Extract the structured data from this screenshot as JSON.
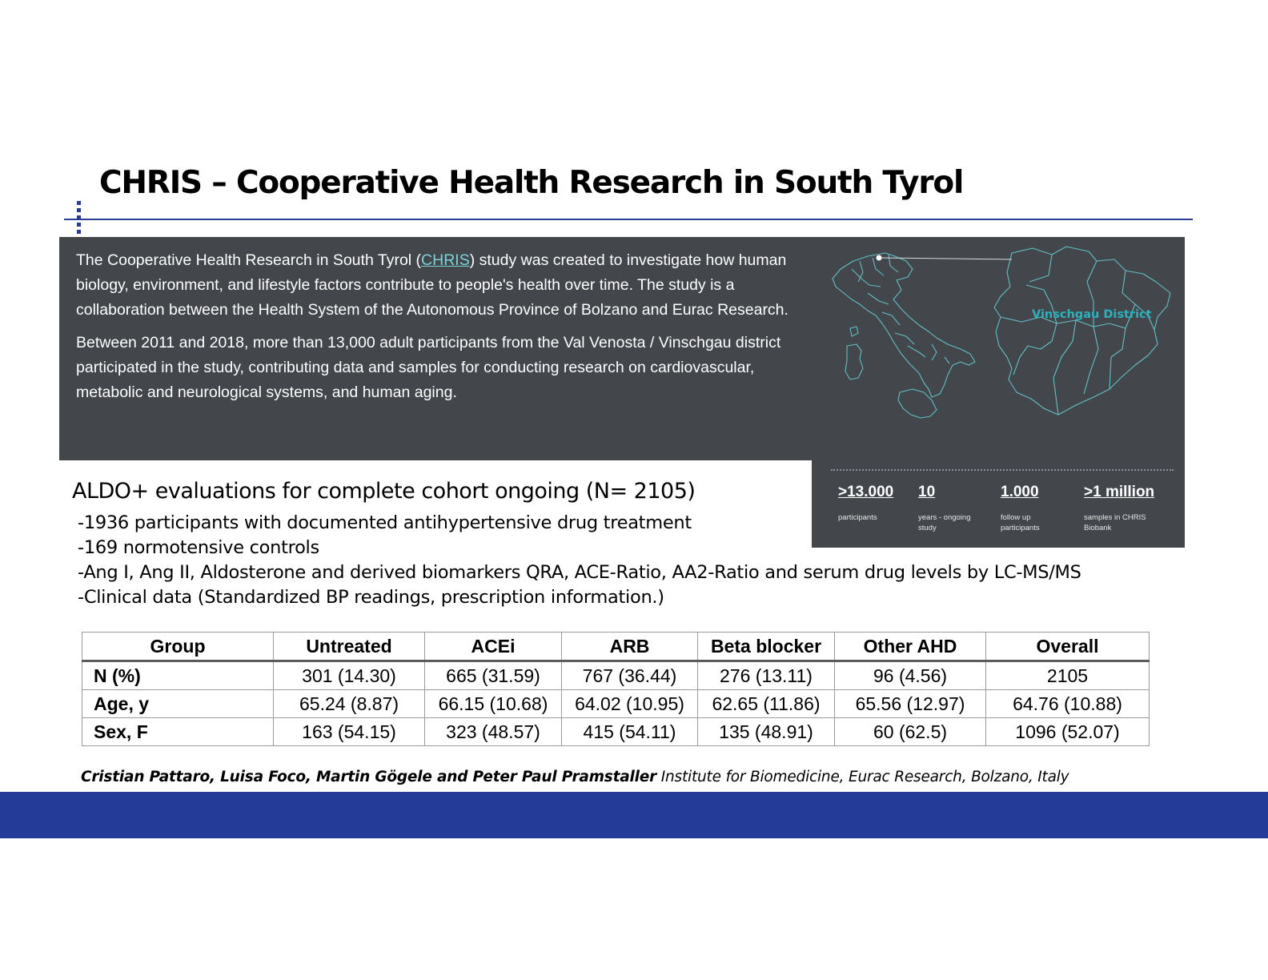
{
  "slide": {
    "title": "CHRIS – Cooperative Health Research in South Tyrol"
  },
  "info": {
    "p1_before": "The Cooperative Health Research in South Tyrol (",
    "p1_link": "CHRIS",
    "p1_after": ") study was created to investigate how human biology, environment, and lifestyle factors contribute to people's health over time. The study is a collaboration between the Health System of the Autonomous Province of Bolzano and Eurac Research.",
    "p2": "Between 2011 and 2018, more than 13,000 adult participants from the Val Venosta / Vinschgau district participated in the study, contributing data and samples  for conducting research on cardiovascular, metabolic and neurological systems, and human aging."
  },
  "map": {
    "district_label": "Vinschgau District",
    "accent_color": "#29b1bd",
    "stats": [
      {
        "value": ">13.000",
        "label": "participants"
      },
      {
        "value": "10",
        "label": "years - ongoing study"
      },
      {
        "value": "1.000",
        "label": "follow up participants"
      },
      {
        "value": ">1 million",
        "label": "samples in CHRIS Biobank"
      }
    ]
  },
  "aldo": {
    "heading": "ALDO+ evaluations for complete cohort ongoing (N= 2105)",
    "bullets": [
      "-1936 participants with documented antihypertensive drug treatment",
      "-169 normotensive controls",
      "-Ang I, Ang II, Aldosterone and derived biomarkers QRA, ACE-Ratio, AA2-Ratio and serum drug levels by LC-MS/MS",
      "-Clinical data (Standardized BP readings, prescription information.)"
    ]
  },
  "table": {
    "headers": [
      "Group",
      "Untreated",
      "ACEi",
      "ARB",
      "Beta blocker",
      "Other AHD",
      "Overall"
    ],
    "rows": [
      [
        "N (%)",
        "301 (14.30)",
        "665 (31.59)",
        "767 (36.44)",
        "276 (13.11)",
        "96 (4.56)",
        "2105"
      ],
      [
        "Age, y",
        "65.24 (8.87)",
        "66.15 (10.68)",
        "64.02 (10.95)",
        "62.65 (11.86)",
        "65.56 (12.97)",
        "64.76 (10.88)"
      ],
      [
        "Sex, F",
        "163 (54.15)",
        "323 (48.57)",
        "415 (54.11)",
        "135 (48.91)",
        "60 (62.5)",
        "1096 (52.07)"
      ]
    ]
  },
  "footer": {
    "authors": "Cristian Pattaro, Luisa Foco, Martin Gögele and Peter Paul Pramstaller",
    "affiliation": " Institute for Biomedicine, Eurac Research, Bolzano, Italy",
    "band_color": "#253b98"
  }
}
